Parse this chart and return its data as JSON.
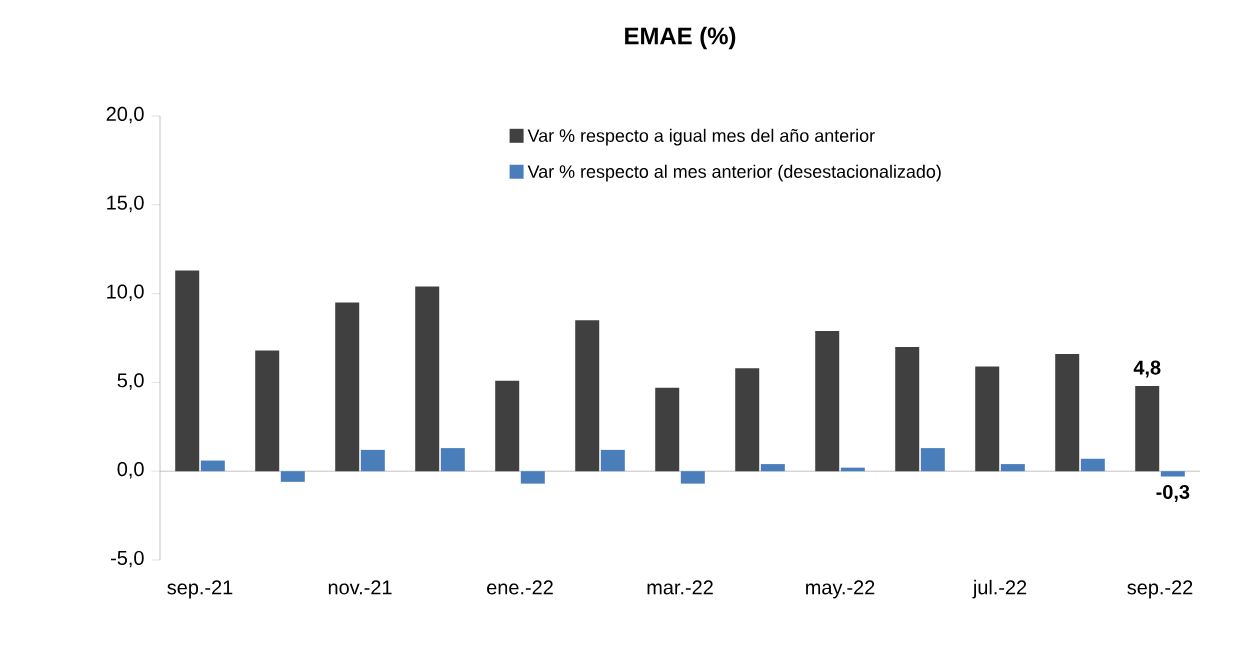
{
  "chart_data": {
    "type": "bar",
    "title": "EMAE (%)",
    "categories": [
      "sep.-21",
      null,
      "nov.-21",
      null,
      "ene.-22",
      null,
      "mar.-22",
      null,
      "may.-22",
      null,
      "jul.-22",
      null,
      "sep.-22"
    ],
    "series": [
      {
        "name": "Var % respecto a igual mes del año anterior",
        "color": "#404040",
        "values": [
          11.3,
          6.8,
          9.5,
          10.4,
          5.1,
          8.5,
          4.7,
          5.8,
          7.9,
          7.0,
          5.9,
          6.6,
          4.8
        ],
        "value_labels": [
          null,
          null,
          null,
          null,
          null,
          null,
          null,
          null,
          null,
          null,
          null,
          null,
          "4,8"
        ]
      },
      {
        "name": "Var % respecto al mes anterior (desestacionalizado)",
        "color": "#4a7ebb",
        "values": [
          0.6,
          -0.6,
          1.2,
          1.3,
          -0.7,
          1.2,
          -0.7,
          0.4,
          0.2,
          1.3,
          0.4,
          0.7,
          -0.3
        ],
        "value_labels": [
          null,
          null,
          null,
          null,
          null,
          null,
          null,
          null,
          null,
          null,
          null,
          null,
          "-0,3"
        ]
      }
    ],
    "ylim": [
      -5,
      20
    ],
    "yticks": [
      {
        "value": -5,
        "label": "-5,0"
      },
      {
        "value": 0,
        "label": "0,0"
      },
      {
        "value": 5,
        "label": "5,0"
      },
      {
        "value": 10,
        "label": "10,0"
      },
      {
        "value": 15,
        "label": "15,0"
      },
      {
        "value": 20,
        "label": "20,0"
      }
    ],
    "legend": "top"
  }
}
